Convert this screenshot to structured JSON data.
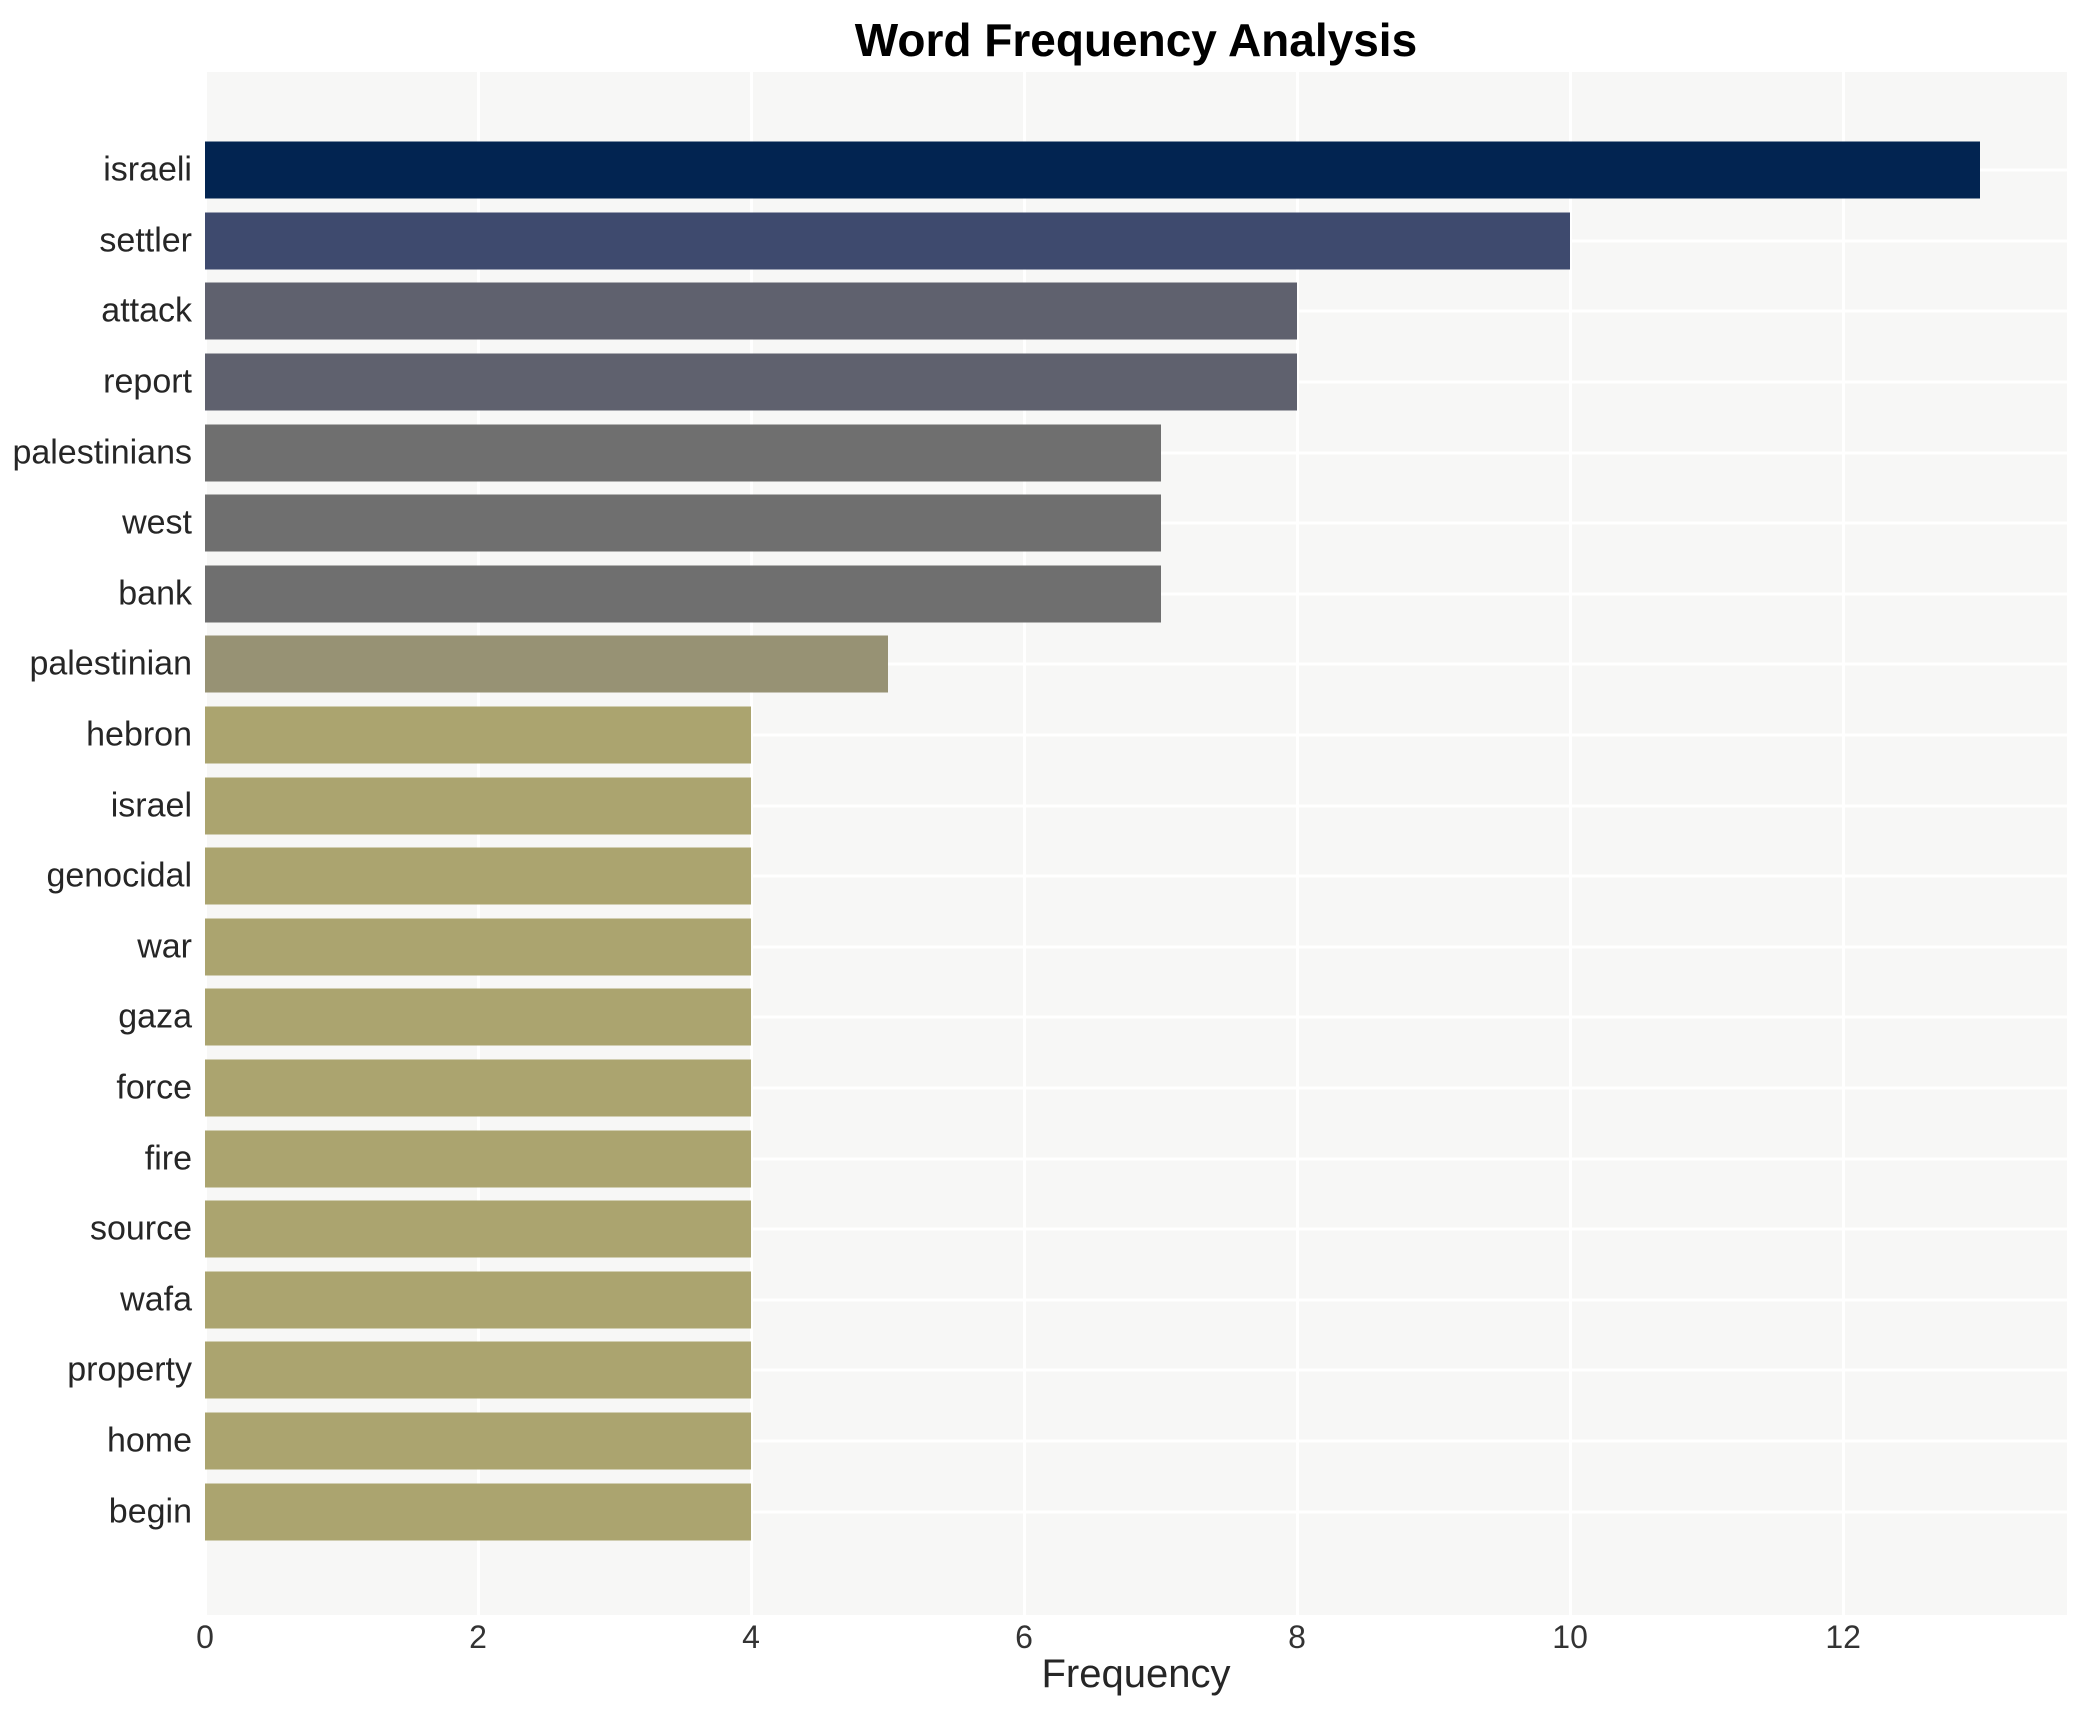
{
  "chart": {
    "title": "Word Frequency Analysis",
    "xlabel": "Frequency"
  },
  "chart_data": {
    "type": "bar",
    "orientation": "horizontal",
    "title": "Word Frequency Analysis",
    "xlabel": "Frequency",
    "ylabel": "",
    "categories": [
      "israeli",
      "settler",
      "attack",
      "report",
      "palestinians",
      "west",
      "bank",
      "palestinian",
      "hebron",
      "israel",
      "genocidal",
      "war",
      "gaza",
      "force",
      "fire",
      "source",
      "wafa",
      "property",
      "home",
      "begin"
    ],
    "values": [
      13,
      10,
      8,
      8,
      7,
      7,
      7,
      5,
      4,
      4,
      4,
      4,
      4,
      4,
      4,
      4,
      4,
      4,
      4,
      4
    ],
    "bar_colors": [
      "#022451",
      "#3e4a6e",
      "#5f616e",
      "#5f616e",
      "#6f6f6f",
      "#6f6f6f",
      "#6f6f6f",
      "#979274",
      "#aba46f",
      "#aba46f",
      "#aba46f",
      "#aba46f",
      "#aba46f",
      "#aba46f",
      "#aba46f",
      "#aba46f",
      "#aba46f",
      "#aba46f",
      "#aba46f",
      "#aba46f"
    ],
    "xlim": [
      0,
      13.64
    ],
    "xticks": [
      0,
      2,
      4,
      6,
      8,
      10,
      12
    ],
    "grid": true,
    "grid_color": "#ffffff",
    "plot_background": "#f7f7f6",
    "legend": false
  }
}
